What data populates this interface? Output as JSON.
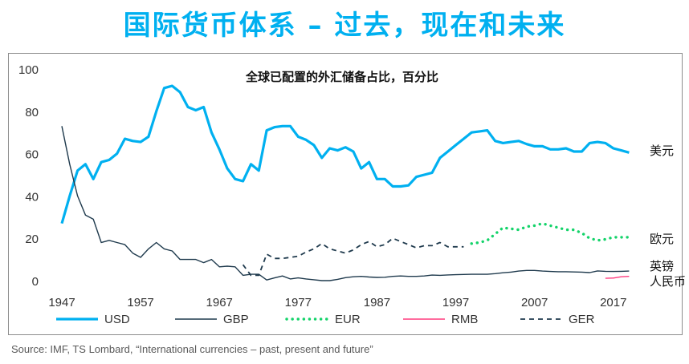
{
  "header": {
    "title": "国际货币体系 – 过去，现在和未来"
  },
  "source": "Source: IMF, TS Lombard, “International currencies – past, present and future”",
  "chart_data": {
    "type": "line",
    "subtitle": "全球已配置的外汇储备占比，百分比",
    "xlim": [
      1947,
      2021
    ],
    "ylim": [
      0,
      100
    ],
    "x_ticks": [
      "1947",
      "1957",
      "1967",
      "1977",
      "1987",
      "1997",
      "2007",
      "2017"
    ],
    "y_ticks": [
      "0",
      "20",
      "40",
      "60",
      "80",
      "100"
    ],
    "grid": false,
    "legend_position": "bottom",
    "series": [
      {
        "name": "USD",
        "end_label": "美元",
        "color": "#00b0f0",
        "style": "solid",
        "width": 3.2,
        "points": [
          [
            1947,
            27
          ],
          [
            1948,
            40
          ],
          [
            1949,
            52
          ],
          [
            1950,
            55
          ],
          [
            1951,
            48
          ],
          [
            1952,
            56
          ],
          [
            1953,
            57
          ],
          [
            1954,
            60
          ],
          [
            1955,
            67
          ],
          [
            1956,
            66
          ],
          [
            1957,
            65.5
          ],
          [
            1958,
            68
          ],
          [
            1959,
            80
          ],
          [
            1960,
            91
          ],
          [
            1961,
            92
          ],
          [
            1962,
            89
          ],
          [
            1963,
            82
          ],
          [
            1964,
            80.5
          ],
          [
            1965,
            82
          ],
          [
            1966,
            70
          ],
          [
            1967,
            62
          ],
          [
            1968,
            53
          ],
          [
            1969,
            48
          ],
          [
            1970,
            47
          ],
          [
            1971,
            55
          ],
          [
            1972,
            52
          ],
          [
            1973,
            71
          ],
          [
            1974,
            72.5
          ],
          [
            1975,
            73
          ],
          [
            1976,
            73
          ],
          [
            1977,
            68
          ],
          [
            1978,
            66.5
          ],
          [
            1979,
            64
          ],
          [
            1980,
            58
          ],
          [
            1981,
            62.5
          ],
          [
            1982,
            61.5
          ],
          [
            1983,
            63
          ],
          [
            1984,
            61
          ],
          [
            1985,
            53
          ],
          [
            1986,
            56
          ],
          [
            1987,
            48
          ],
          [
            1988,
            48
          ],
          [
            1989,
            44.5
          ],
          [
            1990,
            44.5
          ],
          [
            1991,
            45
          ],
          [
            1992,
            49
          ],
          [
            1993,
            50
          ],
          [
            1994,
            51
          ],
          [
            1995,
            58
          ],
          [
            1996,
            61
          ],
          [
            1997,
            64
          ],
          [
            1998,
            67
          ],
          [
            1999,
            70
          ],
          [
            2000,
            70.5
          ],
          [
            2001,
            71
          ],
          [
            2002,
            66
          ],
          [
            2003,
            65
          ],
          [
            2004,
            65.5
          ],
          [
            2005,
            66
          ],
          [
            2006,
            64.5
          ],
          [
            2007,
            63.5
          ],
          [
            2008,
            63.5
          ],
          [
            2009,
            62
          ],
          [
            2010,
            62
          ],
          [
            2011,
            62.5
          ],
          [
            2012,
            61
          ],
          [
            2013,
            61
          ],
          [
            2014,
            65
          ],
          [
            2015,
            65.5
          ],
          [
            2016,
            65
          ],
          [
            2017,
            62.5
          ],
          [
            2018,
            61.5
          ],
          [
            2019,
            60.5
          ]
        ]
      },
      {
        "name": "GBP",
        "end_label": "英镑",
        "color": "#1f3a4d",
        "style": "solid",
        "width": 1.4,
        "points": [
          [
            1947,
            73
          ],
          [
            1948,
            55
          ],
          [
            1949,
            40
          ],
          [
            1950,
            31
          ],
          [
            1951,
            29
          ],
          [
            1952,
            18
          ],
          [
            1953,
            19
          ],
          [
            1954,
            18
          ],
          [
            1955,
            17
          ],
          [
            1956,
            13
          ],
          [
            1957,
            11
          ],
          [
            1958,
            15
          ],
          [
            1959,
            18
          ],
          [
            1960,
            15
          ],
          [
            1961,
            14
          ],
          [
            1962,
            10
          ],
          [
            1963,
            10
          ],
          [
            1964,
            10
          ],
          [
            1965,
            8.5
          ],
          [
            1966,
            10
          ],
          [
            1967,
            6.5
          ],
          [
            1968,
            6.8
          ],
          [
            1969,
            6.5
          ],
          [
            1970,
            2.5
          ],
          [
            1971,
            3
          ],
          [
            1972,
            3
          ],
          [
            1973,
            0.3
          ],
          [
            1974,
            1.3
          ],
          [
            1975,
            2.2
          ],
          [
            1976,
            0.8
          ],
          [
            1977,
            1.3
          ],
          [
            1978,
            0.8
          ],
          [
            1979,
            0.4
          ],
          [
            1980,
            0
          ],
          [
            1981,
            0
          ],
          [
            1982,
            0.6
          ],
          [
            1983,
            1.4
          ],
          [
            1984,
            1.8
          ],
          [
            1985,
            2
          ],
          [
            1986,
            1.7
          ],
          [
            1987,
            1.5
          ],
          [
            1988,
            1.6
          ],
          [
            1989,
            2
          ],
          [
            1990,
            2.2
          ],
          [
            1991,
            2
          ],
          [
            1992,
            2
          ],
          [
            1993,
            2.2
          ],
          [
            1994,
            2.6
          ],
          [
            1995,
            2.5
          ],
          [
            1996,
            2.7
          ],
          [
            1997,
            2.8
          ],
          [
            1998,
            2.9
          ],
          [
            1999,
            3
          ],
          [
            2000,
            3
          ],
          [
            2001,
            3
          ],
          [
            2002,
            3.3
          ],
          [
            2003,
            3.7
          ],
          [
            2004,
            4
          ],
          [
            2005,
            4.5
          ],
          [
            2006,
            4.8
          ],
          [
            2007,
            4.8
          ],
          [
            2008,
            4.5
          ],
          [
            2009,
            4.3
          ],
          [
            2010,
            4.2
          ],
          [
            2011,
            4.2
          ],
          [
            2012,
            4.1
          ],
          [
            2013,
            4
          ],
          [
            2014,
            3.8
          ],
          [
            2015,
            4.6
          ],
          [
            2016,
            4.4
          ],
          [
            2017,
            4.3
          ],
          [
            2018,
            4.4
          ],
          [
            2019,
            4.5
          ]
        ]
      },
      {
        "name": "EUR",
        "end_label": "欧元",
        "color": "#14d36a",
        "style": "dotted",
        "width": 3.4,
        "points": [
          [
            1999,
            17.5
          ],
          [
            2000,
            18
          ],
          [
            2001,
            19
          ],
          [
            2002,
            22
          ],
          [
            2003,
            25
          ],
          [
            2004,
            24.5
          ],
          [
            2005,
            24
          ],
          [
            2006,
            25.5
          ],
          [
            2007,
            26
          ],
          [
            2008,
            27
          ],
          [
            2009,
            26
          ],
          [
            2010,
            25
          ],
          [
            2011,
            24
          ],
          [
            2012,
            24
          ],
          [
            2013,
            22.5
          ],
          [
            2014,
            20
          ],
          [
            2015,
            19
          ],
          [
            2016,
            19.5
          ],
          [
            2017,
            20.5
          ],
          [
            2018,
            20.5
          ],
          [
            2019,
            20.5
          ]
        ]
      },
      {
        "name": "RMB",
        "end_label": "人民币",
        "color": "#ff3b7f",
        "style": "solid",
        "width": 1.4,
        "points": [
          [
            2016,
            1.1
          ],
          [
            2017,
            1.2
          ],
          [
            2018,
            1.8
          ],
          [
            2019,
            2
          ]
        ]
      },
      {
        "name": "GER",
        "end_label": "",
        "color": "#1f3a4d",
        "style": "dashed",
        "width": 1.8,
        "points": [
          [
            1970,
            7.5
          ],
          [
            1971,
            2.5
          ],
          [
            1972,
            2.5
          ],
          [
            1973,
            12.5
          ],
          [
            1974,
            10.5
          ],
          [
            1975,
            10.5
          ],
          [
            1976,
            11
          ],
          [
            1977,
            11.5
          ],
          [
            1978,
            13.5
          ],
          [
            1979,
            15
          ],
          [
            1980,
            17.5
          ],
          [
            1981,
            15
          ],
          [
            1982,
            14
          ],
          [
            1983,
            13
          ],
          [
            1984,
            14.5
          ],
          [
            1985,
            17
          ],
          [
            1986,
            18.5
          ],
          [
            1987,
            16
          ],
          [
            1988,
            17
          ],
          [
            1989,
            20
          ],
          [
            1990,
            18.5
          ],
          [
            1991,
            17
          ],
          [
            1992,
            15.5
          ],
          [
            1993,
            16.5
          ],
          [
            1994,
            16.5
          ],
          [
            1995,
            18
          ],
          [
            1996,
            16
          ],
          [
            1997,
            16
          ],
          [
            1998,
            16
          ]
        ]
      }
    ]
  }
}
